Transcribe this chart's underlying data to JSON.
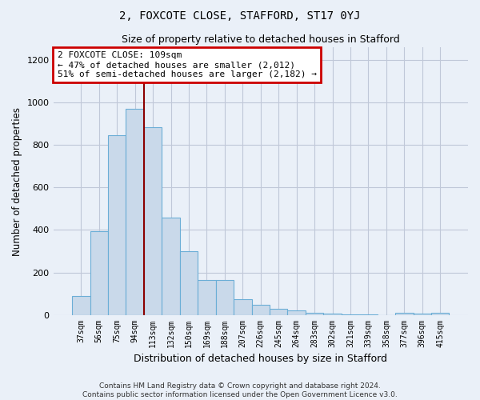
{
  "title_line1": "2, FOXCOTE CLOSE, STAFFORD, ST17 0YJ",
  "title_line2": "Size of property relative to detached houses in Stafford",
  "xlabel": "Distribution of detached houses by size in Stafford",
  "ylabel": "Number of detached properties",
  "categories": [
    "37sqm",
    "56sqm",
    "75sqm",
    "94sqm",
    "113sqm",
    "132sqm",
    "150sqm",
    "169sqm",
    "188sqm",
    "207sqm",
    "226sqm",
    "245sqm",
    "264sqm",
    "283sqm",
    "302sqm",
    "321sqm",
    "339sqm",
    "358sqm",
    "377sqm",
    "396sqm",
    "415sqm"
  ],
  "values": [
    90,
    395,
    845,
    970,
    885,
    460,
    300,
    165,
    165,
    75,
    48,
    30,
    20,
    10,
    5,
    3,
    2,
    0,
    8,
    5,
    8
  ],
  "bar_color": "#c9d9ea",
  "bar_edge_color": "#6baed6",
  "grid_color": "#c0c8d8",
  "vline_color": "#8b0000",
  "annotation_text": "2 FOXCOTE CLOSE: 109sqm\n← 47% of detached houses are smaller (2,012)\n51% of semi-detached houses are larger (2,182) →",
  "annotation_box_color": "white",
  "annotation_box_edge": "#cc0000",
  "ylim": [
    0,
    1260
  ],
  "yticks": [
    0,
    200,
    400,
    600,
    800,
    1000,
    1200
  ],
  "footnote": "Contains HM Land Registry data © Crown copyright and database right 2024.\nContains public sector information licensed under the Open Government Licence v3.0.",
  "bg_color": "#eaf0f8"
}
